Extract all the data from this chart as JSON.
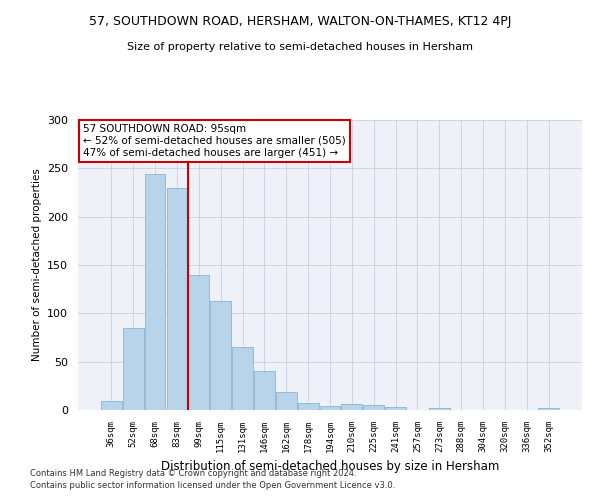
{
  "title": "57, SOUTHDOWN ROAD, HERSHAM, WALTON-ON-THAMES, KT12 4PJ",
  "subtitle": "Size of property relative to semi-detached houses in Hersham",
  "xlabel": "Distribution of semi-detached houses by size in Hersham",
  "ylabel": "Number of semi-detached properties",
  "categories": [
    "36sqm",
    "52sqm",
    "68sqm",
    "83sqm",
    "99sqm",
    "115sqm",
    "131sqm",
    "146sqm",
    "162sqm",
    "178sqm",
    "194sqm",
    "210sqm",
    "225sqm",
    "241sqm",
    "257sqm",
    "273sqm",
    "288sqm",
    "304sqm",
    "320sqm",
    "336sqm",
    "352sqm"
  ],
  "values": [
    9,
    85,
    244,
    230,
    140,
    113,
    65,
    40,
    19,
    7,
    4,
    6,
    5,
    3,
    0,
    2,
    0,
    0,
    0,
    0,
    2
  ],
  "bar_color": "#b8d4ea",
  "bar_edge_color": "#88b4d4",
  "property_bin_index": 4,
  "annotation_title": "57 SOUTHDOWN ROAD: 95sqm",
  "annotation_line1": "← 52% of semi-detached houses are smaller (505)",
  "annotation_line2": "47% of semi-detached houses are larger (451) →",
  "vline_color": "#cc0000",
  "annotation_box_edge": "#cc0000",
  "ylim": [
    0,
    300
  ],
  "yticks": [
    0,
    50,
    100,
    150,
    200,
    250,
    300
  ],
  "footer1": "Contains HM Land Registry data © Crown copyright and database right 2024.",
  "footer2": "Contains public sector information licensed under the Open Government Licence v3.0.",
  "background_color": "#eef2f8",
  "grid_color": "#c8d0dc"
}
